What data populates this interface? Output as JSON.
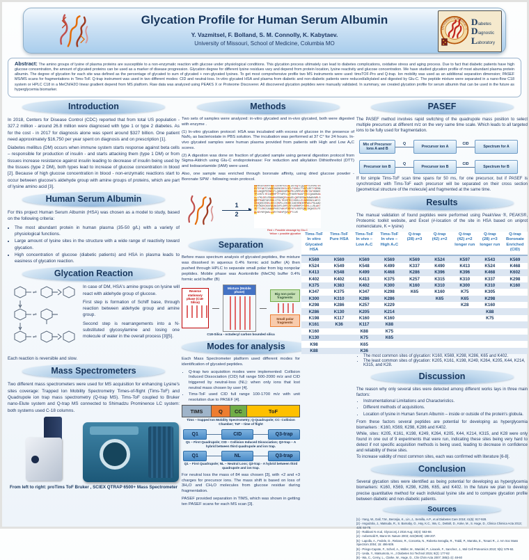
{
  "header": {
    "title": "Glycation Profile for Human Serum Albumin",
    "authors": "Y. Vazmitsel, F. Bolland, S. M. Connolly, K. Kabytaev.",
    "affiliation": "University of Missouri, School of Medicine, Columbia MO",
    "logo": {
      "seal_text": "UNIVERSITY OF MISSOURI - COLUMBIA",
      "words": [
        "Diabetes",
        "Diagnostic",
        "Laboratory"
      ]
    }
  },
  "abstract": {
    "label": "Abstract:",
    "text": "The amino groups of lysine of plasma proteins are susceptible to a non-enzymatic reaction with glucose under physiological conditions. This glycation process ultimately can lead to diabetes complications, oxidative stress and aging process. Due to fact that diabetic patients have high glucose concentration, the amount of glycated proteins can be used as a marker of disease progression. Glycation degree for different lysine residues vary and depend from protein location, lysine reactivity and glucose concentration. We have studied glycation profile of most abundant plasma protein albumin. The degree of glycation for each site was defined as the percentage of glycated to sum of glycated + non-glycated lysines. To get most comprehensive profile two MS instruments were used: timsTOF-Pro and Q-trap. Ion mobility was used as an additional separation dimension; PASEF MS/MS scans for fragmentations in Tims-ToF. Q-trap instrument was used in two different modes: CID and neutral-loss. In-vitro glycated HSA and plasma from diabetic and non-diabetic patients were reduced/alkylated and digested by Glu-C. The peptide mixture were separated in a nano-flow C18 system or HPLC C18 in a MeCN/H2O linear gradient depend from MS platform. Raw data was analyzed using PEAKS X or Proteome Discoverer. All discovered glycation peptides were manually validated. In summary, we created glycation profile for serum albumin that can be used in the future as hyperglycemia biomarker."
  },
  "left": {
    "introduction": {
      "title": "Introduction",
      "para1": "In 2018, Centers for Disease Control (CDC) reported that from total US population - 327.2 million - around 26.8 million were diagnosed with type 1 or type 2 diabetes. As for the cost - in 2017 for diagnosis alone was spent around $327 billion. One patient need approximately $16,750 per year spent on diagnosis and on prescription [1].",
      "para2": "Diabetes mellitus (DM) occurs when immune system starts response against beta cells – responsible for production of insulin - and starts attacking them (type 1 DM) or from tissues increase resistance against insulin leading to decrease of insulin being used by the tissues (type 2 DM), both types lead to increase of glucose concentration in blood [2]. Because of high glucose concentration in blood - non-enzymatic reactions start to occur between glucose's aldehyde group with amine groups of proteins, which are part of lysine amino acid [3]."
    },
    "hsa": {
      "title": "Human Serum Albumin",
      "intro": "For this project Human Serum Albumin (HSA) was chosen as a model to study, based on the following criteria:",
      "bullets": [
        "The most abundant protein in human plasma (35-50 g/L) with a variety of physiological functions.",
        "Large amount of lysine sites in the structure with a wide range of reactivity toward glycation.",
        "High concentration of glucose (diabetic patients) and HSA in plasma leads to easiness of glycation reaction."
      ]
    },
    "glycation": {
      "title": "Glycation Reaction",
      "para1": "In case of DM, HSA's amine groups on lysine will react with aldehyde group of glucose.",
      "para2": "First step is formation of Schiff base, through reaction between aldehyde group and amine group.",
      "para3": "Second step is rearrangements into a N-substituted glycosylamine and losing one molecule of water in the overall process [3][5].",
      "note": "Each reaction is reversible and slow."
    },
    "ms": {
      "title": "Mass Spectrometers",
      "text": "Two different mass spectrometers were used for MS acquisition for enhancing Lysine's sites coverage: Trapped Ion Mobility Spectrometry Times-of-flight (Tims-ToF) and Quadrupole ion trap mass spectrometry (Q-trap MS). Tims-ToF coupled to Bruker nano-Elute system and Q-trap MS connected to Shimadzu Prominence LC system: both systems used C-18 columns.",
      "caption": "From left to right: proTims ToF Bruker , SCIEX QTRAP 6500+ Mass Spectrometer"
    }
  },
  "middle": {
    "methods": {
      "title": "Methods",
      "para1": "Two sets of samples were analyzed: in-vitro glycated and in-vivo glycated, both were digested with enzyme .",
      "para2": "(1) In-vitro glycation protocol: HSA was incubated with excess of glucose in the presence of NaN₃ as bacteriostate in PBS solution. The incubation was performed at 37 C° for 24 hours. In-vivo glycated samples were human plasma provided from patients with High and Low A₁C scores.",
      "para3": "(2) A digestion was done on fraction of glycated sample using general digestion protocol from Sigma-Aldrich using Glu-C endoproteinase: For reduction and alkylation Dithiothreitol (DTT) and Iodoacetamide (IAM) were used.",
      "para4": "Also, one sample was enriched through boronate affinity, using dried glucose powder - Boronate SPW - following resin protocol."
    },
    "figure": {
      "step1": "1",
      "step2": "2",
      "sequence": "DAHKSEVAHRFKDLGEENFKALVLIAFAQYLQQCPFEDHVKLVNEVTEFAKTCVADESAENCDKSLHTLFGDKLCTVATLRETYGEMADCCAKQEPERNECFLQHKDDNPNLPRLVRPEVDVMCTAFHDNEETFLKKYLYEIARRHPYFYAPELLFFAKRYKAAFTECCQAADKAACLLPKLDELRDEGKASSAKQRLKCASLQKFGERAFKAWAVARLSQRFPKAEFAEVSKLVTDLTKVHTECCHGDLLECADDRADLAKYICENQDSISSKLKECCEKPLLEKSHCIAEVENDEMPADLPSLAADFVESKDVCKNYAEAKDVFLGMFLYEYARRHPDYSVVLLLRLAKTYETTLEKCCAAADPHECYAKVFDEFKPLVEEPQNLIKQNCELFEQLGEYKFQNALLVRYTKKVPQVSTPTLVE",
      "caption_line1": "Red = Possible cleavage by Glu-C",
      "caption_line2": "Yellow = possible glycation site"
    },
    "separation": {
      "title": "Separation",
      "text": "Before mass spectrum analysis of glycated peptides, the mixture was dissolved in aqueous 0.4% formic acid buffer (A) then pushed through HPLC to separate small polar from big nonpolar peptides. Mobile phase was Acetonitrile (MeCN) buffer 0.4% formic acid buffer (B)",
      "diagram": {
        "stationary": "Reverse stationary phase (C18-Silica)",
        "mixture": "Mixture (Mobile phase)",
        "big": "Big non polar fragments",
        "small": "Small polar fragments"
      },
      "caption": "C18-Silica - octadecyl carbon bounded silica"
    },
    "modes": {
      "title": "Modes for analysis",
      "intro": "Each Mass Spectrometer platform used different modes for identification of glycated peptides.",
      "bullets": [
        "Q-trap two acquisition modes were implemented: Collision Induced Dissociation (CID) full range 500-2000 m/z and CID triggered by neutral-loss (NL): when only ions that lost neutral mass chosen by user [4].",
        "Tims-ToF used CID full range 100-1700 m/z with unit resolution due to PASEF [4]."
      ],
      "tims_bar": {
        "segments": [
          "TIMS",
          "Q",
          "CC",
          "ToF"
        ],
        "caption": "Tims – trapped Ion Mobility Spectrometry; Q-Quadrupole; CC- Collision Chamber; ToF – time of flight"
      },
      "cid_diagram": {
        "boxes": [
          "Q1",
          "CID",
          "Q3-trap"
        ],
        "caption": "Q1 – First Quadrupole; CID – Collision Induced Dissociation; Q3-trap – A hybrid between third quadrupole and ion trap."
      },
      "nl_diagram": {
        "boxes": [
          "Q1",
          "NL",
          "Q3-trap"
        ],
        "caption": "Q1 – First Quadrupole; NL – Neutral Loss; Q3-trap - A hybrid between third quadrupole and ion trap."
      },
      "closing1": "For neutral loss the mass of 84 was chosen [3], with +2 and +3 charges for precursor ions. The mass shift is based on loss of 3H₂O and CH₂O molecules from glucose residue during fragmentation.",
      "closing2": "PASEF provided separation in TIMS, which was shown in getting ten PASEF scans for each MS scan [3]."
    }
  },
  "right": {
    "pasef": {
      "title": "PASEF",
      "intro": "The PASEF method involves rapid switching of the quadrupole mass position to select multiple precursors at different m/z on the very same time scale. Which leads to all targeted ions to be fully used for fragmentation.",
      "row1": {
        "box1": "Mix of Precursor Ions A and B",
        "arrow1": "Q",
        "box2": "Precursor ion A",
        "arrow2": "CID",
        "box3": "Spectrum for A"
      },
      "row2": {
        "box1": "Precursor ion B",
        "arrow1": "Q",
        "box2": "Precursor ion B",
        "arrow2": "CID",
        "box3": "Spectrum for B"
      },
      "outro": "If for simple Tims-ToF scan time spans for 50 ms, for one precursor, but if PASEF is synchronized with Tims-ToF each precursor will be separated on their cross section [geometrical structure of the molecule] and fragmented at the same time."
    },
    "results": {
      "title": "Results",
      "intro": "The manual validation of found peptides were performed using PeakView ®, PEAKS®, Proteomic toolkit website, and Excel (#-location of the site in HSA based on uniprot nomenclature, K = lysine)",
      "bullets": [
        "The most common sites of glycation: K160, K569, K298, K286, K65 and K402.",
        "The least common sites of glycation: K205, K161, K198, K249, K264, K205, K44, K214, K315, and K28."
      ]
    },
    "discussion": {
      "title": "Discussion",
      "intro": "The reason why only several sites were detected among different works lays in three main factors:",
      "bullets": [
        "Instrumentational Limitations and Characteristics.",
        "Different methods of acquisitions.",
        "Location of lysine in Human Serum Albumin – inside or outside of the protein's globula."
      ],
      "para2": "From these factors several peptides are potential for developing as hyperglycemia biomarkers : K160, K569, K298, K286 and K402.",
      "para3": "While, sites: K205, K161, K198, K249, K264, K205, K44, K214, K315, and K28 were only found in one out of 9 experiments that were run, indicating these sites being very hard to detect if not specific acquisition methods is being used, leading to decrease in confidence and reliability of these sites.",
      "para4": "To increase validity of most common sites, each was confirmed with literature [6-8]."
    },
    "conclusion": {
      "title": "Conclusion",
      "text": "Several glycation sites were identified as being potential for developing as hyperglycemia biomarkers: K160, K569, K298, K286, K65, and K402. In the future we plan to develop precise quantitative method for each individual lysine site and to compare glycation profile between diabetic and non-diabetic patients."
    },
    "sources": {
      "title": "Sources",
      "refs": [
        "[1] - Yang, W., Dall, T.M., Beronjia, K., Lin, J., Semilla, A.P., et.al Diabetes Care 2018; 41(5): 917-928.",
        "[2] - Anguizola, J., Matsuda, R., S. Barnaby, O., Hoy, K.C., Wa, C., DeBolt, D., Koke, M., S. Hage, D., Clinica Chimica Acta 2013; 425: 64-76.",
        "[3] - Rabbani N et.al, Glycoconj J 2016 Aug; 33(4): 553-68.",
        "[4] - Aebersold R, Mann M. Nature 2003; 422(6928): 198-207.",
        "[5] - Lapolla, A., Fedele, D., Reitano, R., Concetta, N., Roberta Seraglia, R., Traldi, P., Marotta, E., Tonani R., J. Am Soc Mass Spectrom 2004; 15: 496-509.",
        "[6] - Priego-Capote, F., Scherl, A., Müller, M., Waridel, P., Lisacek, F., Sanchez, J., Mol Cell Proteomics 2010; 9(5): 579-92.",
        "[7] - Ueda, Y., Matsumoto, H., J Diabetes Sci Technol 2015; 9(2): 177-82",
        "[8] - Wa, C., Cerny, L., Clarke, W., Hage, D., Clin Chim Acta 2007; 385(1-2): 48-60"
      ]
    }
  },
  "chart_data": {
    "type": "table",
    "title": "Glycation sites found per experiment",
    "headers": [
      "Tims-ToF\nIn vitro\nGlycated\nHSA",
      "Tims-ToF\nPure HSA",
      "Tims-ToF\nIn vivo –\nLow A₁C",
      "Tims-ToF\nIn vivo –\nHigh A₁C",
      "Q-trap\n(28) z=3",
      "Q-trap\n(42) z=2",
      "Q-trap\n(42) z=2\nlonger run",
      "Q-trap\n(28) z=3\nlonger run",
      "Q-trap\nBoronate\nEnriched\n(CID)"
    ],
    "rows": [
      [
        "K569",
        "K569",
        "K569",
        "K569",
        "K569",
        "K524",
        "K597",
        "K543",
        "K569"
      ],
      [
        "K524",
        "K549",
        "K548",
        "K499",
        "K337",
        "K490",
        "K413",
        "K524",
        "K468"
      ],
      [
        "K413",
        "K548",
        "K499",
        "K468",
        "K286",
        "K396",
        "K396",
        "K468",
        "K602"
      ],
      [
        "K402",
        "K402",
        "K413",
        "K375",
        "K257",
        "K315",
        "K310",
        "K337",
        "K298"
      ],
      [
        "K375",
        "K383",
        "K402",
        "K300",
        "K160",
        "K310",
        "K300",
        "K310",
        "K160"
      ],
      [
        "K347",
        "K375",
        "K347",
        "K298",
        "K65",
        "K160",
        "K75",
        "K305",
        ""
      ],
      [
        "K300",
        "K310",
        "K286",
        "K286",
        "",
        "K65",
        "K65",
        "K298",
        ""
      ],
      [
        "K298",
        "K286",
        "K257",
        "K229",
        "",
        "",
        "K28",
        "K160",
        ""
      ],
      [
        "K286",
        "K130",
        "K205",
        "K214",
        "",
        "",
        "",
        "K88",
        ""
      ],
      [
        "K198",
        "K117",
        "K160",
        "K160",
        "",
        "",
        "",
        "K75",
        ""
      ],
      [
        "K161",
        "K36",
        "K117",
        "K88",
        "",
        "",
        "",
        "",
        ""
      ],
      [
        "K160",
        "",
        "K88",
        "K75",
        "",
        "",
        "",
        "",
        ""
      ],
      [
        "K130",
        "",
        "K75",
        "K65",
        "",
        "",
        "",
        "",
        ""
      ],
      [
        "K98",
        "",
        "K65",
        "",
        "",
        "",
        "",
        "",
        ""
      ],
      [
        "K88",
        "",
        "K36",
        "",
        "",
        "",
        "",
        "",
        ""
      ]
    ]
  }
}
